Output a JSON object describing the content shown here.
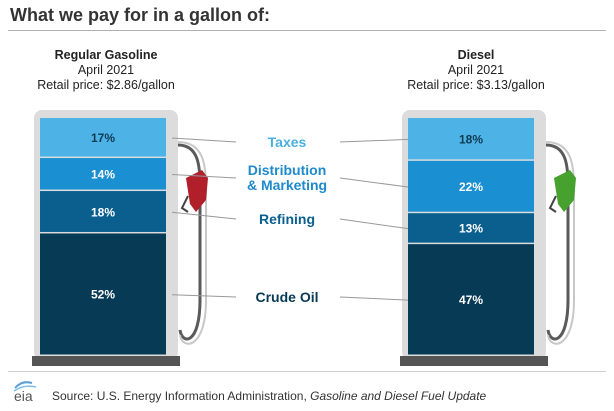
{
  "title": "What we pay for in a gallon of:",
  "colors": {
    "taxes": "#4db3e6",
    "distribution": "#1a8fd1",
    "refining": "#0b5f8f",
    "crude": "#073a55",
    "pump_body": "#dcdcdc",
    "pump_base": "#555555",
    "gas_nozzle": "#b11f2b",
    "diesel_nozzle": "#46a12e",
    "label_taxes": "#4ab0e0",
    "label_distribution": "#1e8acb",
    "label_refining": "#0b5f8f",
    "label_crude": "#073a55"
  },
  "pumps": [
    {
      "name": "Regular Gasoline",
      "date": "April 2021",
      "price": "Retail price: $2.86/gallon",
      "nozzle": "gas_nozzle"
    },
    {
      "name": "Diesel",
      "date": "April 2021",
      "price": "Retail price: $3.13/gallon",
      "nozzle": "diesel_nozzle"
    }
  ],
  "component_labels": {
    "taxes": "Taxes",
    "distribution_line1": "Distribution",
    "distribution_line2": "& Marketing",
    "refining": "Refining",
    "crude": "Crude Oil"
  },
  "chart_data": {
    "type": "bar",
    "stacked": true,
    "title": "What we pay for in a gallon of:",
    "categories": [
      "Regular Gasoline",
      "Diesel"
    ],
    "series": [
      {
        "name": "Crude Oil",
        "key": "crude",
        "values": [
          52,
          47
        ],
        "labels": [
          "52%",
          "47%"
        ]
      },
      {
        "name": "Refining",
        "key": "refining",
        "values": [
          18,
          13
        ],
        "labels": [
          "18%",
          "13%"
        ]
      },
      {
        "name": "Distribution & Marketing",
        "key": "distribution",
        "values": [
          14,
          22
        ],
        "labels": [
          "14%",
          "22%"
        ]
      },
      {
        "name": "Taxes",
        "key": "taxes",
        "values": [
          17,
          18
        ],
        "labels": [
          "17%",
          "18%"
        ]
      }
    ],
    "unit": "percent of retail price"
  },
  "footer": {
    "logo": "eia",
    "source_prefix": "Source: U.S. Energy Information Administration, ",
    "source_italic": "Gasoline and Diesel Fuel Update"
  }
}
